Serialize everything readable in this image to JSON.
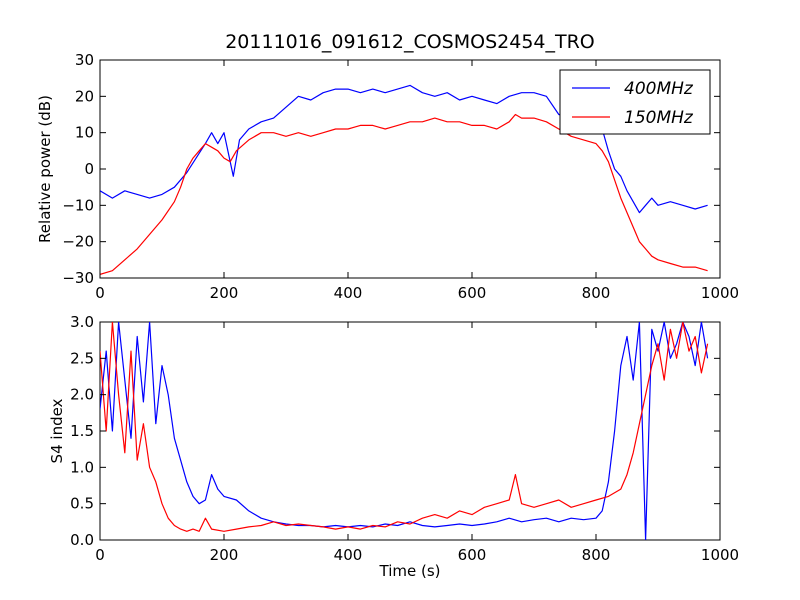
{
  "chart_data": [
    {
      "type": "line",
      "title": "20111016_091612_COSMOS2454_TRO",
      "xlabel": "",
      "ylabel": "Relative power (dB)",
      "xlim": [
        0,
        1000
      ],
      "ylim": [
        -30,
        30
      ],
      "xticks": [
        0,
        200,
        400,
        600,
        800,
        1000
      ],
      "yticks": [
        -30,
        -20,
        -10,
        0,
        10,
        20,
        30
      ],
      "xtick_labels": [
        "0",
        "200",
        "400",
        "600",
        "800",
        "1000"
      ],
      "ytick_labels": [
        "−30",
        "−20",
        "−10",
        "0",
        "10",
        "20",
        "30"
      ],
      "grid": false,
      "legend_position": "top-right",
      "series": [
        {
          "name": "400MHz",
          "color": "#0000ff",
          "points": [
            [
              0,
              -6
            ],
            [
              20,
              -8
            ],
            [
              40,
              -6
            ],
            [
              60,
              -7
            ],
            [
              80,
              -8
            ],
            [
              100,
              -7
            ],
            [
              120,
              -5
            ],
            [
              140,
              -1
            ],
            [
              155,
              3
            ],
            [
              170,
              7
            ],
            [
              180,
              10
            ],
            [
              190,
              7
            ],
            [
              200,
              10
            ],
            [
              210,
              2
            ],
            [
              215,
              -2
            ],
            [
              225,
              8
            ],
            [
              240,
              11
            ],
            [
              260,
              13
            ],
            [
              280,
              14
            ],
            [
              300,
              17
            ],
            [
              320,
              20
            ],
            [
              340,
              19
            ],
            [
              360,
              21
            ],
            [
              380,
              22
            ],
            [
              400,
              22
            ],
            [
              420,
              21
            ],
            [
              440,
              22
            ],
            [
              460,
              21
            ],
            [
              480,
              22
            ],
            [
              500,
              23
            ],
            [
              520,
              21
            ],
            [
              540,
              20
            ],
            [
              560,
              21
            ],
            [
              580,
              19
            ],
            [
              600,
              20
            ],
            [
              620,
              19
            ],
            [
              640,
              18
            ],
            [
              660,
              20
            ],
            [
              680,
              21
            ],
            [
              700,
              21
            ],
            [
              720,
              20
            ],
            [
              740,
              15
            ],
            [
              760,
              14
            ],
            [
              780,
              13
            ],
            [
              800,
              13
            ],
            [
              810,
              11
            ],
            [
              820,
              5
            ],
            [
              830,
              0
            ],
            [
              840,
              -2
            ],
            [
              850,
              -6
            ],
            [
              860,
              -9
            ],
            [
              870,
              -12
            ],
            [
              880,
              -10
            ],
            [
              890,
              -8
            ],
            [
              900,
              -10
            ],
            [
              920,
              -9
            ],
            [
              940,
              -10
            ],
            [
              960,
              -11
            ],
            [
              980,
              -10
            ]
          ]
        },
        {
          "name": "150MHz",
          "color": "#ff0000",
          "points": [
            [
              0,
              -29
            ],
            [
              20,
              -28
            ],
            [
              40,
              -25
            ],
            [
              60,
              -22
            ],
            [
              80,
              -18
            ],
            [
              100,
              -14
            ],
            [
              120,
              -9
            ],
            [
              130,
              -5
            ],
            [
              140,
              0
            ],
            [
              150,
              3
            ],
            [
              160,
              5
            ],
            [
              170,
              7
            ],
            [
              180,
              6
            ],
            [
              190,
              5
            ],
            [
              200,
              3
            ],
            [
              210,
              2
            ],
            [
              220,
              5
            ],
            [
              240,
              8
            ],
            [
              260,
              10
            ],
            [
              280,
              10
            ],
            [
              300,
              9
            ],
            [
              320,
              10
            ],
            [
              340,
              9
            ],
            [
              360,
              10
            ],
            [
              380,
              11
            ],
            [
              400,
              11
            ],
            [
              420,
              12
            ],
            [
              440,
              12
            ],
            [
              460,
              11
            ],
            [
              480,
              12
            ],
            [
              500,
              13
            ],
            [
              520,
              13
            ],
            [
              540,
              14
            ],
            [
              560,
              13
            ],
            [
              580,
              13
            ],
            [
              600,
              12
            ],
            [
              620,
              12
            ],
            [
              640,
              11
            ],
            [
              660,
              13
            ],
            [
              670,
              15
            ],
            [
              680,
              14
            ],
            [
              700,
              14
            ],
            [
              720,
              13
            ],
            [
              740,
              11
            ],
            [
              760,
              9
            ],
            [
              780,
              8
            ],
            [
              800,
              7
            ],
            [
              810,
              5
            ],
            [
              820,
              2
            ],
            [
              830,
              -3
            ],
            [
              840,
              -8
            ],
            [
              850,
              -12
            ],
            [
              860,
              -16
            ],
            [
              870,
              -20
            ],
            [
              880,
              -22
            ],
            [
              890,
              -24
            ],
            [
              900,
              -25
            ],
            [
              920,
              -26
            ],
            [
              940,
              -27
            ],
            [
              960,
              -27
            ],
            [
              980,
              -28
            ]
          ]
        }
      ]
    },
    {
      "type": "line",
      "title": "",
      "xlabel": "Time (s)",
      "ylabel": "S4 index",
      "xlim": [
        0,
        1000
      ],
      "ylim": [
        0,
        3
      ],
      "xticks": [
        0,
        200,
        400,
        600,
        800,
        1000
      ],
      "yticks": [
        0,
        0.5,
        1,
        1.5,
        2,
        2.5,
        3
      ],
      "xtick_labels": [
        "0",
        "200",
        "400",
        "600",
        "800",
        "1000"
      ],
      "ytick_labels": [
        "0.0",
        "0.5",
        "1.0",
        "1.5",
        "2.0",
        "2.5",
        "3.0"
      ],
      "grid": false,
      "series": [
        {
          "name": "400MHz",
          "color": "#0000ff",
          "points": [
            [
              0,
              1.8
            ],
            [
              10,
              2.6
            ],
            [
              20,
              1.5
            ],
            [
              30,
              3.0
            ],
            [
              40,
              2.2
            ],
            [
              50,
              1.4
            ],
            [
              60,
              2.8
            ],
            [
              70,
              1.9
            ],
            [
              80,
              3.0
            ],
            [
              90,
              1.6
            ],
            [
              100,
              2.4
            ],
            [
              110,
              2.0
            ],
            [
              120,
              1.4
            ],
            [
              130,
              1.1
            ],
            [
              140,
              0.8
            ],
            [
              150,
              0.6
            ],
            [
              160,
              0.5
            ],
            [
              170,
              0.55
            ],
            [
              180,
              0.9
            ],
            [
              190,
              0.7
            ],
            [
              200,
              0.6
            ],
            [
              220,
              0.55
            ],
            [
              240,
              0.4
            ],
            [
              260,
              0.3
            ],
            [
              280,
              0.25
            ],
            [
              300,
              0.22
            ],
            [
              320,
              0.2
            ],
            [
              340,
              0.2
            ],
            [
              360,
              0.18
            ],
            [
              380,
              0.2
            ],
            [
              400,
              0.18
            ],
            [
              420,
              0.2
            ],
            [
              440,
              0.18
            ],
            [
              460,
              0.22
            ],
            [
              480,
              0.2
            ],
            [
              500,
              0.25
            ],
            [
              520,
              0.2
            ],
            [
              540,
              0.18
            ],
            [
              560,
              0.2
            ],
            [
              580,
              0.22
            ],
            [
              600,
              0.2
            ],
            [
              620,
              0.22
            ],
            [
              640,
              0.25
            ],
            [
              660,
              0.3
            ],
            [
              680,
              0.25
            ],
            [
              700,
              0.28
            ],
            [
              720,
              0.3
            ],
            [
              740,
              0.25
            ],
            [
              760,
              0.3
            ],
            [
              780,
              0.28
            ],
            [
              800,
              0.3
            ],
            [
              810,
              0.4
            ],
            [
              820,
              0.8
            ],
            [
              830,
              1.5
            ],
            [
              840,
              2.4
            ],
            [
              850,
              2.8
            ],
            [
              860,
              2.2
            ],
            [
              870,
              3.0
            ],
            [
              880,
              0.0
            ],
            [
              890,
              2.9
            ],
            [
              900,
              2.6
            ],
            [
              910,
              3.0
            ],
            [
              920,
              2.5
            ],
            [
              930,
              2.7
            ],
            [
              940,
              3.0
            ],
            [
              950,
              2.8
            ],
            [
              960,
              2.4
            ],
            [
              970,
              3.0
            ],
            [
              980,
              2.5
            ]
          ]
        },
        {
          "name": "150MHz",
          "color": "#ff0000",
          "points": [
            [
              0,
              2.6
            ],
            [
              10,
              1.5
            ],
            [
              20,
              3.0
            ],
            [
              30,
              2.0
            ],
            [
              40,
              1.2
            ],
            [
              50,
              2.6
            ],
            [
              60,
              1.1
            ],
            [
              70,
              1.6
            ],
            [
              80,
              1.0
            ],
            [
              90,
              0.8
            ],
            [
              100,
              0.5
            ],
            [
              110,
              0.3
            ],
            [
              120,
              0.2
            ],
            [
              130,
              0.15
            ],
            [
              140,
              0.12
            ],
            [
              150,
              0.15
            ],
            [
              160,
              0.12
            ],
            [
              170,
              0.3
            ],
            [
              180,
              0.15
            ],
            [
              200,
              0.12
            ],
            [
              220,
              0.15
            ],
            [
              240,
              0.18
            ],
            [
              260,
              0.2
            ],
            [
              280,
              0.25
            ],
            [
              300,
              0.2
            ],
            [
              320,
              0.22
            ],
            [
              340,
              0.2
            ],
            [
              360,
              0.18
            ],
            [
              380,
              0.15
            ],
            [
              400,
              0.18
            ],
            [
              420,
              0.15
            ],
            [
              440,
              0.2
            ],
            [
              460,
              0.18
            ],
            [
              480,
              0.25
            ],
            [
              500,
              0.22
            ],
            [
              520,
              0.3
            ],
            [
              540,
              0.35
            ],
            [
              560,
              0.3
            ],
            [
              580,
              0.4
            ],
            [
              600,
              0.35
            ],
            [
              620,
              0.45
            ],
            [
              640,
              0.5
            ],
            [
              660,
              0.55
            ],
            [
              670,
              0.9
            ],
            [
              680,
              0.5
            ],
            [
              700,
              0.45
            ],
            [
              720,
              0.5
            ],
            [
              740,
              0.55
            ],
            [
              760,
              0.45
            ],
            [
              780,
              0.5
            ],
            [
              800,
              0.55
            ],
            [
              820,
              0.6
            ],
            [
              840,
              0.7
            ],
            [
              850,
              0.9
            ],
            [
              860,
              1.2
            ],
            [
              870,
              1.6
            ],
            [
              880,
              2.0
            ],
            [
              890,
              2.4
            ],
            [
              900,
              2.7
            ],
            [
              910,
              2.2
            ],
            [
              920,
              2.9
            ],
            [
              930,
              2.5
            ],
            [
              940,
              3.0
            ],
            [
              950,
              2.6
            ],
            [
              960,
              2.8
            ],
            [
              970,
              2.3
            ],
            [
              980,
              2.7
            ]
          ]
        }
      ]
    }
  ]
}
